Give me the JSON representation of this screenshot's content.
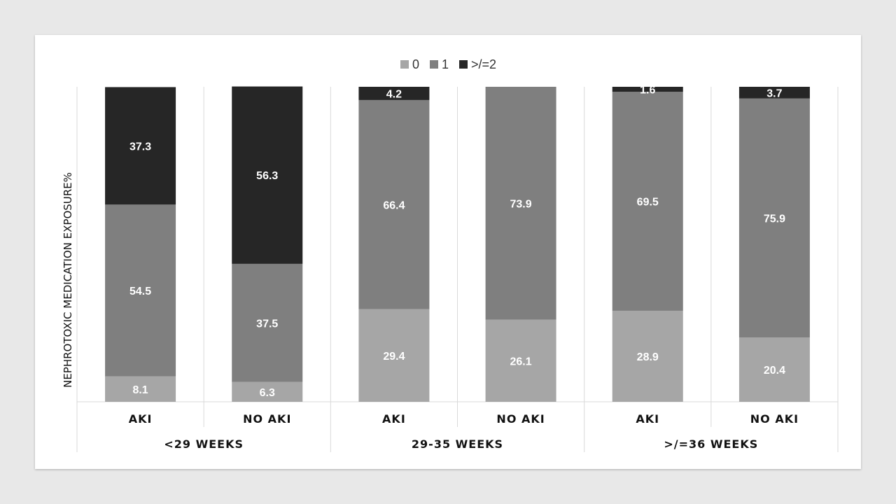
{
  "chart_data": {
    "type": "bar",
    "stacked": true,
    "ylabel": "NEPHROTOXIC MEDICATION EXPOSURE%",
    "ylim": [
      0,
      100
    ],
    "legend": {
      "placement": "top-center",
      "items": [
        {
          "name": "0",
          "color": "#a6a6a6"
        },
        {
          "name": "1",
          "color": "#7f7f7f"
        },
        {
          "name": ">/=2",
          "color": "#262626"
        }
      ]
    },
    "groups": [
      "<29 WEEKS",
      "29-35 WEEKS",
      ">/=36 WEEKS"
    ],
    "categories": [
      "AKI",
      "NO AKI",
      "AKI",
      "NO AKI",
      "AKI",
      "NO AKI"
    ],
    "series": [
      {
        "name": "0",
        "color": "#a6a6a6",
        "values": [
          8.1,
          6.3,
          29.4,
          26.1,
          28.9,
          20.4
        ]
      },
      {
        "name": "1",
        "color": "#7f7f7f",
        "values": [
          54.5,
          37.5,
          66.4,
          73.9,
          69.5,
          75.9
        ]
      },
      {
        "name": ">/=2",
        "color": "#262626",
        "values": [
          37.3,
          56.3,
          4.2,
          null,
          1.6,
          3.7
        ]
      }
    ],
    "grid": "vertical-separators"
  }
}
